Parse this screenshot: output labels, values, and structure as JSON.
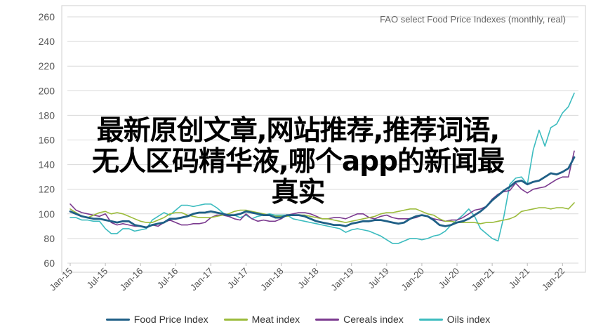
{
  "chart_data": {
    "type": "line",
    "title": "FAO select Food Price Indexes (monthly, real)",
    "xlabel": "",
    "ylabel": "",
    "ylim": [
      60,
      260
    ],
    "yticks": [
      60,
      80,
      100,
      120,
      140,
      160,
      180,
      200,
      220,
      240,
      260
    ],
    "xticks": [
      "Jan-15",
      "Jul-15",
      "Jan-16",
      "Jul-16",
      "Jan-17",
      "Jul-17",
      "Jan-18",
      "Jul-18",
      "Jan-19",
      "Jul-19",
      "Jan-20",
      "Jul-20",
      "Jan-21",
      "Jul-21",
      "Jan-22"
    ],
    "grid": "horizontal",
    "legend_position": "bottom",
    "x": [
      "2015-01",
      "2015-02",
      "2015-03",
      "2015-04",
      "2015-05",
      "2015-06",
      "2015-07",
      "2015-08",
      "2015-09",
      "2015-10",
      "2015-11",
      "2015-12",
      "2016-01",
      "2016-02",
      "2016-03",
      "2016-04",
      "2016-05",
      "2016-06",
      "2016-07",
      "2016-08",
      "2016-09",
      "2016-10",
      "2016-11",
      "2016-12",
      "2017-01",
      "2017-02",
      "2017-03",
      "2017-04",
      "2017-05",
      "2017-06",
      "2017-07",
      "2017-08",
      "2017-09",
      "2017-10",
      "2017-11",
      "2017-12",
      "2018-01",
      "2018-02",
      "2018-03",
      "2018-04",
      "2018-05",
      "2018-06",
      "2018-07",
      "2018-08",
      "2018-09",
      "2018-10",
      "2018-11",
      "2018-12",
      "2019-01",
      "2019-02",
      "2019-03",
      "2019-04",
      "2019-05",
      "2019-06",
      "2019-07",
      "2019-08",
      "2019-09",
      "2019-10",
      "2019-11",
      "2019-12",
      "2020-01",
      "2020-02",
      "2020-03",
      "2020-04",
      "2020-05",
      "2020-06",
      "2020-07",
      "2020-08",
      "2020-09",
      "2020-10",
      "2020-11",
      "2020-12",
      "2021-01",
      "2021-02",
      "2021-03",
      "2021-04",
      "2021-05",
      "2021-06",
      "2021-07",
      "2021-08",
      "2021-09",
      "2021-10",
      "2021-11",
      "2021-12",
      "2022-01",
      "2022-02",
      "2022-03"
    ],
    "series": [
      {
        "name": "Food Price Index",
        "color": "#1f5f86",
        "width": 2.8,
        "values": [
          102,
          100,
          98,
          97,
          96,
          96,
          95,
          94,
          93,
          94,
          94,
          91,
          90,
          89,
          91,
          92,
          93,
          96,
          96,
          97,
          98,
          100,
          101,
          101,
          102,
          101,
          100,
          99,
          99,
          100,
          102,
          101,
          100,
          99,
          99,
          97,
          97,
          99,
          99,
          99,
          98,
          96,
          94,
          93,
          92,
          91,
          91,
          90,
          92,
          93,
          94,
          94,
          95,
          95,
          94,
          93,
          92,
          93,
          96,
          98,
          99,
          98,
          95,
          91,
          90,
          91,
          93,
          94,
          96,
          99,
          102,
          106,
          111,
          115,
          119,
          122,
          126,
          127,
          124,
          126,
          127,
          130,
          133,
          132,
          134,
          137,
          146
        ]
      },
      {
        "name": "Meat index",
        "color": "#9bbb3b",
        "width": 1.6,
        "values": [
          104,
          101,
          98,
          97,
          99,
          101,
          102,
          100,
          101,
          100,
          98,
          96,
          94,
          93,
          93,
          95,
          97,
          100,
          101,
          101,
          99,
          98,
          97,
          97,
          97,
          98,
          99,
          100,
          102,
          103,
          103,
          102,
          101,
          100,
          99,
          98,
          98,
          98,
          99,
          99,
          99,
          98,
          97,
          96,
          96,
          95,
          94,
          93,
          94,
          95,
          96,
          97,
          98,
          100,
          101,
          101,
          102,
          103,
          104,
          104,
          102,
          100,
          99,
          96,
          94,
          94,
          93,
          93,
          93,
          93,
          92,
          93,
          93,
          94,
          95,
          96,
          98,
          102,
          103,
          104,
          105,
          105,
          104,
          105,
          105,
          104,
          109
        ]
      },
      {
        "name": "Cereals index",
        "color": "#7b3a8f",
        "width": 1.6,
        "values": [
          108,
          103,
          101,
          100,
          99,
          98,
          100,
          93,
          91,
          92,
          91,
          90,
          90,
          89,
          91,
          90,
          93,
          95,
          93,
          91,
          91,
          92,
          92,
          93,
          97,
          99,
          99,
          98,
          96,
          95,
          100,
          96,
          94,
          95,
          94,
          94,
          96,
          99,
          100,
          101,
          101,
          100,
          98,
          96,
          96,
          97,
          97,
          96,
          98,
          100,
          100,
          97,
          96,
          98,
          99,
          97,
          96,
          96,
          96,
          97,
          99,
          98,
          96,
          95,
          94,
          95,
          95,
          97,
          100,
          103,
          104,
          106,
          112,
          116,
          118,
          119,
          125,
          120,
          117,
          120,
          121,
          122,
          125,
          128,
          130,
          130,
          151
        ]
      },
      {
        "name": "Oils index",
        "color": "#3cbcbf",
        "width": 1.6,
        "values": [
          97,
          97,
          95,
          95,
          94,
          94,
          88,
          84,
          84,
          88,
          88,
          86,
          87,
          88,
          95,
          98,
          101,
          99,
          103,
          107,
          107,
          106,
          107,
          108,
          108,
          105,
          101,
          98,
          99,
          97,
          99,
          96,
          98,
          99,
          100,
          99,
          99,
          99,
          96,
          95,
          94,
          93,
          92,
          91,
          90,
          89,
          88,
          85,
          87,
          88,
          87,
          86,
          84,
          82,
          79,
          76,
          76,
          78,
          80,
          80,
          79,
          80,
          82,
          83,
          86,
          91,
          95,
          99,
          104,
          98,
          88,
          84,
          80,
          78,
          98,
          124,
          129,
          130,
          124,
          152,
          168,
          155,
          170,
          173,
          182,
          187,
          198
        ]
      }
    ]
  },
  "watermark": {
    "line1": "最新原创文章,网站推荐,推荐词语,",
    "line2": "无人区码精华液,哪个app的新闻最",
    "line3": "真实"
  }
}
